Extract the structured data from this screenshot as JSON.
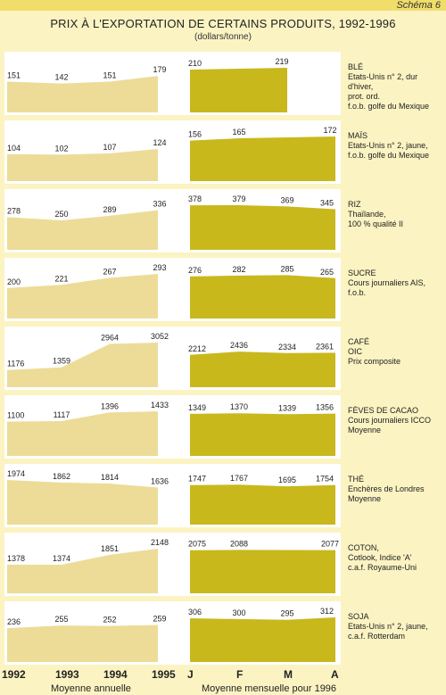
{
  "header": {
    "schema_label": "Schéma 6",
    "title": "PRIX À L'EXPORTATION DE CERTAINS PRODUITS, 1992-1996",
    "subtitle": "(dollars/tonne)"
  },
  "axis": {
    "years": [
      "1992",
      "1993",
      "1994",
      "1995"
    ],
    "months": [
      "J",
      "F",
      "M",
      "A"
    ],
    "annual_caption": "Moyenne annuelle",
    "monthly_caption": "Moyenne mensuelle pour 1996"
  },
  "colors": {
    "background": "#fbf3c2",
    "panel": "#ffffff",
    "annual_fill": "#ecdc98",
    "monthly_fill": "#c8b81c",
    "header_band": "#f0dd6a"
  },
  "chart_data": [
    {
      "type": "area",
      "product": "BLÉ",
      "desc": [
        "Etats-Unis n° 2, dur d'hiver,",
        "prot. ord.",
        "f.o.b. golfe du Mexique"
      ],
      "annual": {
        "x": [
          "1992",
          "1993",
          "1994",
          "1995"
        ],
        "values": [
          151,
          142,
          151,
          179
        ]
      },
      "monthly": {
        "x": [
          "J",
          "F"
        ],
        "values": [
          210,
          219
        ]
      }
    },
    {
      "type": "area",
      "product": "MAÏS",
      "desc": [
        "Etats-Unis n° 2, jaune,",
        "f.o.b. golfe du Mexique"
      ],
      "annual": {
        "x": [
          "1992",
          "1993",
          "1994",
          "1995"
        ],
        "values": [
          104,
          102,
          107,
          124
        ]
      },
      "monthly": {
        "x": [
          "J",
          "F",
          "M"
        ],
        "values": [
          156,
          165,
          172
        ]
      }
    },
    {
      "type": "area",
      "product": "RIZ",
      "desc": [
        "Thaïlande,",
        "100 % qualité II"
      ],
      "annual": {
        "x": [
          "1992",
          "1993",
          "1994",
          "1995"
        ],
        "values": [
          278,
          250,
          289,
          336
        ]
      },
      "monthly": {
        "x": [
          "J",
          "F",
          "M",
          "A"
        ],
        "values": [
          378,
          379,
          369,
          345
        ]
      }
    },
    {
      "type": "area",
      "product": "SUCRE",
      "desc": [
        "Cours journaliers AIS,",
        "f.o.b."
      ],
      "annual": {
        "x": [
          "1992",
          "1993",
          "1994",
          "1995"
        ],
        "values": [
          200,
          221,
          267,
          293
        ]
      },
      "monthly": {
        "x": [
          "J",
          "F",
          "M",
          "A"
        ],
        "values": [
          276,
          282,
          285,
          265
        ]
      }
    },
    {
      "type": "area",
      "product": "CAFÉ",
      "desc": [
        "OIC",
        "Prix composite"
      ],
      "annual": {
        "x": [
          "1992",
          "1993",
          "1994",
          "1995"
        ],
        "values": [
          1176,
          1359,
          2964,
          3052
        ]
      },
      "monthly": {
        "x": [
          "J",
          "F",
          "M",
          "A"
        ],
        "values": [
          2212,
          2436,
          2334,
          2361
        ]
      }
    },
    {
      "type": "area",
      "product": "FÈVES DE CACAO",
      "desc": [
        "Cours journaliers ICCO",
        "Moyenne"
      ],
      "annual": {
        "x": [
          "1992",
          "1993",
          "1994",
          "1995"
        ],
        "values": [
          1100,
          1117,
          1396,
          1433
        ]
      },
      "monthly": {
        "x": [
          "J",
          "F",
          "M",
          "A"
        ],
        "values": [
          1349,
          1370,
          1339,
          1356
        ]
      }
    },
    {
      "type": "area",
      "product": "THÉ",
      "desc": [
        "Enchères de Londres",
        "Moyenne"
      ],
      "annual": {
        "x": [
          "1992",
          "1993",
          "1994",
          "1995"
        ],
        "values": [
          1974,
          1862,
          1814,
          1636
        ]
      },
      "monthly": {
        "x": [
          "J",
          "F",
          "M",
          "A"
        ],
        "values": [
          1747,
          1767,
          1695,
          1754
        ]
      }
    },
    {
      "type": "area",
      "product": "COTON,",
      "desc": [
        "Cotlook, Indice 'A'",
        "c.a.f. Royaume-Uni"
      ],
      "annual": {
        "x": [
          "1992",
          "1993",
          "1994",
          "1995"
        ],
        "values": [
          1378,
          1374,
          1851,
          2148
        ]
      },
      "monthly": {
        "x": [
          "J",
          "F",
          "M"
        ],
        "values": [
          2075,
          2088,
          2077
        ]
      }
    },
    {
      "type": "area",
      "product": "SOJA",
      "desc": [
        "Etats-Unis n° 2, jaune,",
        "c.a.f. Rotterdam"
      ],
      "annual": {
        "x": [
          "1992",
          "1993",
          "1994",
          "1995"
        ],
        "values": [
          236,
          255,
          252,
          259
        ]
      },
      "monthly": {
        "x": [
          "J",
          "F",
          "M",
          "A"
        ],
        "values": [
          306,
          300,
          295,
          312
        ]
      }
    }
  ]
}
